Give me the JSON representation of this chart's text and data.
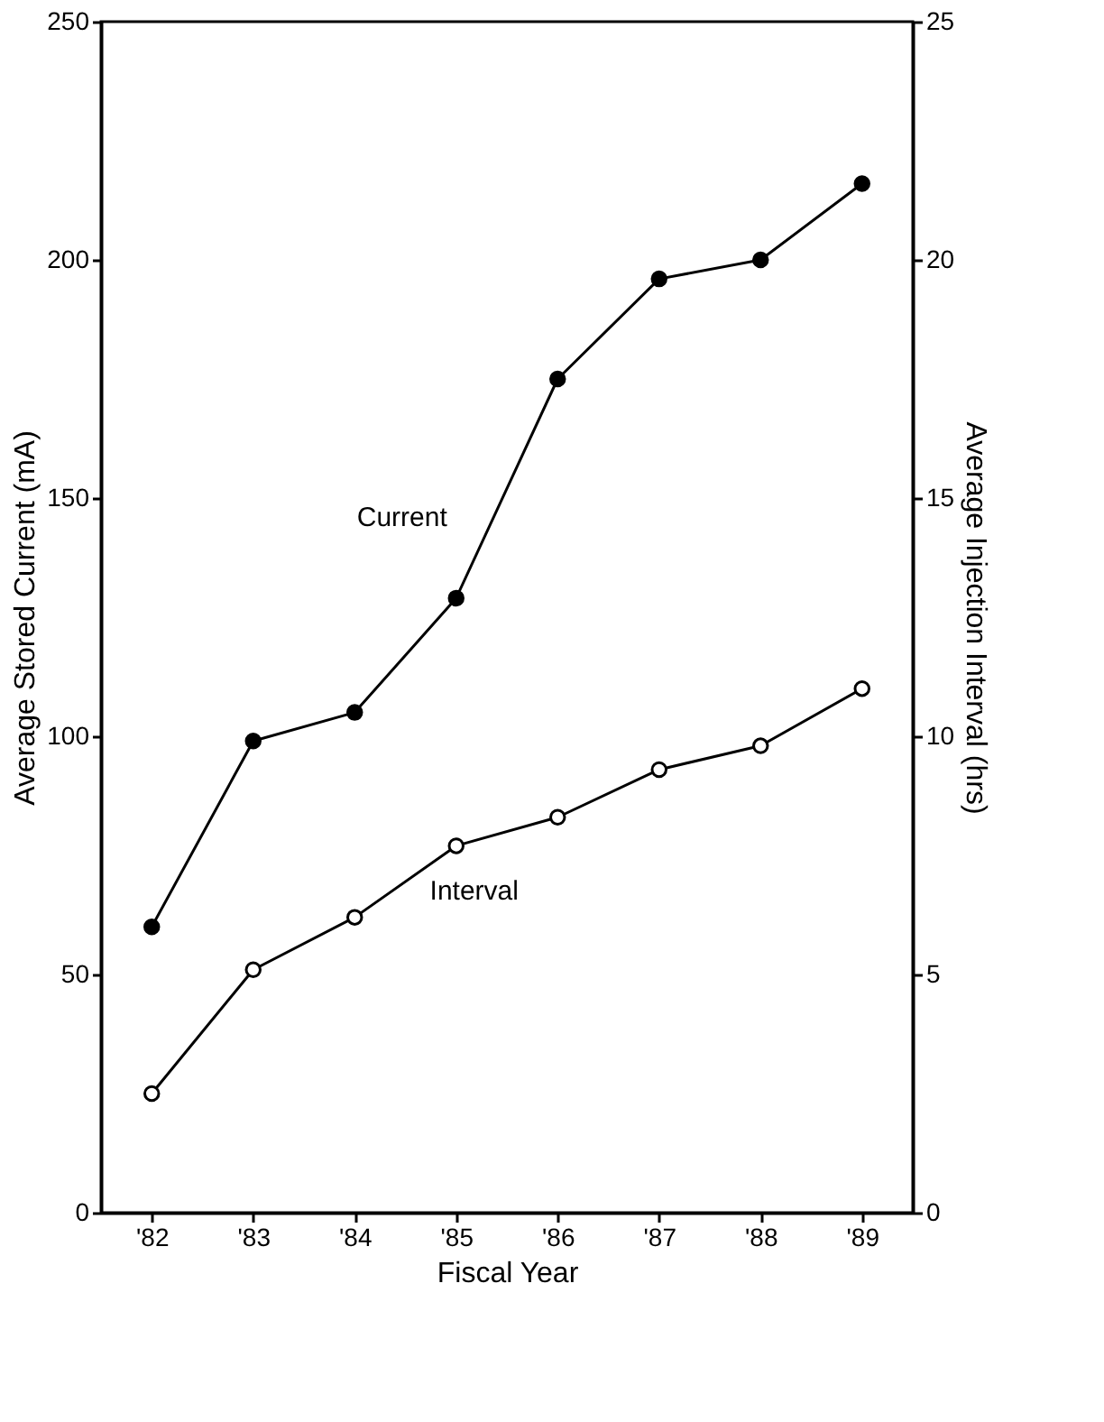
{
  "chart_data": {
    "type": "line",
    "xlabel": "Fiscal Year",
    "ylabel": "Average Stored Current (mA)",
    "y2label": "Average Injection Interval (hrs)",
    "categories": [
      "'82",
      "'83",
      "'84",
      "'85",
      "'86",
      "'87",
      "'88",
      "'89"
    ],
    "series": [
      {
        "name": "Current",
        "color": "#000000",
        "marker": "circle",
        "values": [
          60,
          99,
          105,
          129,
          175,
          196,
          200,
          216
        ]
      },
      {
        "name": "Interval",
        "color": "#000000",
        "marker": "circle",
        "axis": "y2",
        "values": [
          2.5,
          5.1,
          6.2,
          7.7,
          8.3,
          9.3,
          9.8,
          11.0
        ]
      }
    ],
    "ylim": [
      0,
      250
    ],
    "yticks": [
      0,
      50,
      100,
      150,
      200,
      250
    ],
    "y2lim": [
      0,
      25
    ],
    "y2ticks": [
      0,
      5,
      10,
      15,
      20,
      25
    ],
    "grid": false,
    "line_style": "solid"
  }
}
